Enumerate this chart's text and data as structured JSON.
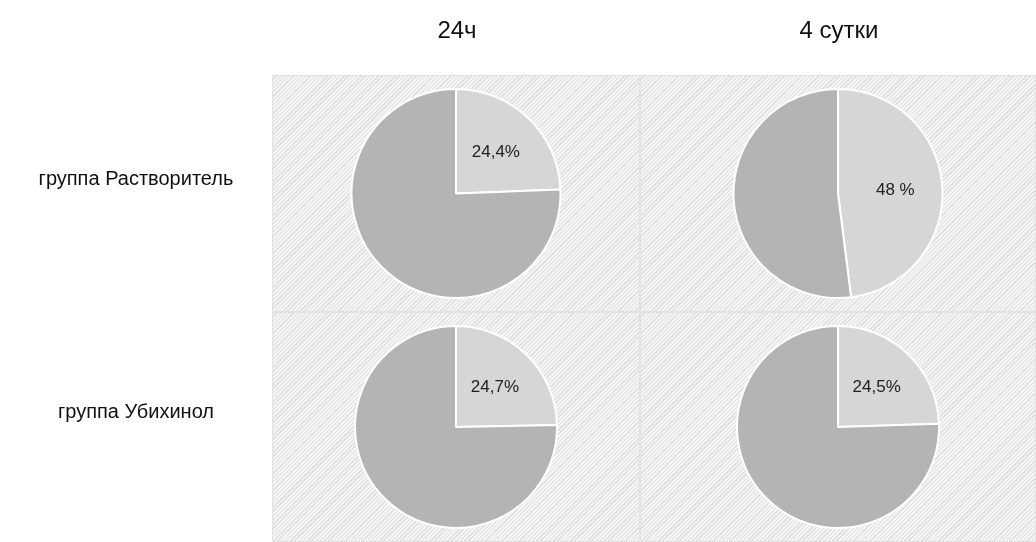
{
  "chart_data": [
    {
      "type": "pie",
      "title": "24ч",
      "ylabel": "группа Растворитель",
      "categories": [
        null,
        null
      ],
      "values": [
        24.4,
        75.6
      ],
      "colors": [
        "#d6d6d6",
        "#b4b4b4"
      ],
      "value_labels": [
        "24,4%",
        null
      ]
    },
    {
      "type": "pie",
      "title": "4 сутки",
      "categories": [
        null,
        null
      ],
      "values": [
        48,
        52
      ],
      "colors": [
        "#d6d6d6",
        "#b4b4b4"
      ],
      "value_labels": [
        "48 %",
        null
      ]
    },
    {
      "type": "pie",
      "ylabel": "группа Убихинол",
      "categories": [
        null,
        null
      ],
      "values": [
        24.7,
        75.3
      ],
      "colors": [
        "#d6d6d6",
        "#b4b4b4"
      ],
      "value_labels": [
        "24,7%",
        null
      ]
    },
    {
      "type": "pie",
      "categories": [
        null,
        null
      ],
      "values": [
        24.5,
        75.5
      ],
      "colors": [
        "#d6d6d6",
        "#b4b4b4"
      ],
      "value_labels": [
        "24,5%",
        null
      ]
    }
  ]
}
